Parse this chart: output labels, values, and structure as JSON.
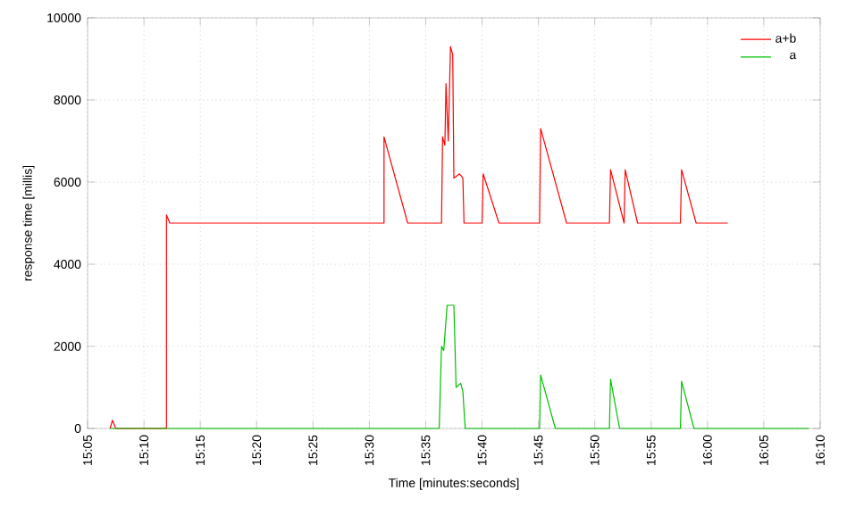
{
  "chart_data": {
    "type": "line",
    "xlabel": "Time [minutes:seconds]",
    "ylabel": "response time [millis]",
    "xlim": [
      15.0833,
      16.1667
    ],
    "ylim": [
      0,
      10000
    ],
    "xticks": [
      {
        "value": 15.0833,
        "label": "15:05"
      },
      {
        "value": 15.1667,
        "label": "15:10"
      },
      {
        "value": 15.25,
        "label": "15:15"
      },
      {
        "value": 15.3333,
        "label": "15:20"
      },
      {
        "value": 15.4167,
        "label": "15:25"
      },
      {
        "value": 15.5,
        "label": "15:30"
      },
      {
        "value": 15.5833,
        "label": "15:35"
      },
      {
        "value": 15.6667,
        "label": "15:40"
      },
      {
        "value": 15.75,
        "label": "15:45"
      },
      {
        "value": 15.8333,
        "label": "15:50"
      },
      {
        "value": 15.9167,
        "label": "15:55"
      },
      {
        "value": 16.0,
        "label": "16:00"
      },
      {
        "value": 16.0833,
        "label": "16:05"
      },
      {
        "value": 16.1667,
        "label": "16:10"
      }
    ],
    "yticks": [
      0,
      2000,
      4000,
      6000,
      8000,
      10000
    ],
    "grid": true,
    "legend": "top right",
    "marker": "none",
    "line_style": "solid",
    "series": [
      {
        "name": "a+b",
        "color": "#ff0000",
        "x": [
          15.1167,
          15.12,
          15.125,
          15.2,
          15.2,
          15.205,
          15.5217,
          15.5217,
          15.5567,
          15.6067,
          15.6083,
          15.6117,
          15.6133,
          15.6167,
          15.62,
          15.6233,
          15.625,
          15.6333,
          15.6383,
          15.64,
          15.6667,
          15.6683,
          15.6917,
          15.7517,
          15.7533,
          15.7917,
          15.855,
          15.8567,
          15.8767,
          15.8783,
          15.8967,
          15.96,
          15.9617,
          15.9833,
          16.03
        ],
        "values": [
          0,
          200,
          0,
          0,
          5200,
          5000,
          5000,
          7100,
          5000,
          5000,
          7100,
          6900,
          8400,
          7000,
          9300,
          9100,
          6100,
          6200,
          6100,
          5000,
          5000,
          6200,
          5000,
          5000,
          7300,
          5000,
          5000,
          6300,
          5000,
          6300,
          5000,
          5000,
          6300,
          5000,
          5000
        ]
      },
      {
        "name": "a",
        "color": "#00c000",
        "x": [
          15.1167,
          15.6033,
          15.6067,
          15.61,
          15.615,
          15.625,
          15.6283,
          15.635,
          15.6383,
          15.6417,
          15.7517,
          15.7533,
          15.775,
          15.855,
          15.8567,
          15.87,
          15.96,
          15.9617,
          15.98,
          16.15
        ],
        "values": [
          0,
          0,
          2000,
          1900,
          3000,
          3000,
          1000,
          1100,
          900,
          0,
          0,
          1300,
          0,
          0,
          1200,
          0,
          0,
          1150,
          0,
          0
        ]
      }
    ]
  }
}
